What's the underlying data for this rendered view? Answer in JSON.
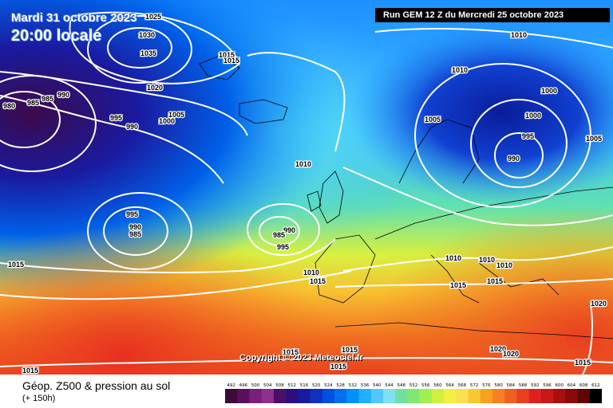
{
  "header": {
    "date_line": "Mardi 31 octobre 2023",
    "time_line": "20:00 locale",
    "run_info": "Run GEM 12 Z du Mercredi 25 octobre 2023"
  },
  "map": {
    "copyright": "Copyright © 2023 Meteociel.fr",
    "isobar_labels": [
      "1025",
      "1030",
      "1035",
      "1020",
      "1015",
      "1015",
      "980",
      "985",
      "985",
      "990",
      "995",
      "990",
      "1000",
      "1005",
      "1010",
      "995",
      "990",
      "985",
      "990",
      "995",
      "985",
      "1010",
      "1015",
      "1010",
      "1015",
      "1005",
      "1010",
      "1000",
      "1000",
      "995",
      "990",
      "1005",
      "1010",
      "1010",
      "1010",
      "1015",
      "1015",
      "1015",
      "1020",
      "1020",
      "1020",
      "1015",
      "1015",
      "1015",
      "1015"
    ]
  },
  "footer": {
    "variable_title": "Géop. Z500 & pression au sol",
    "forecast_hour": "(+ 150h)"
  },
  "legend": {
    "values": [
      "492",
      "496",
      "500",
      "504",
      "508",
      "512",
      "516",
      "520",
      "524",
      "528",
      "532",
      "536",
      "540",
      "544",
      "548",
      "552",
      "556",
      "560",
      "564",
      "568",
      "572",
      "576",
      "580",
      "584",
      "588",
      "592",
      "596",
      "600",
      "604",
      "608",
      "612"
    ],
    "colors": [
      "#3b0a3a",
      "#5a0f5a",
      "#7a1f7a",
      "#8f2f8f",
      "#4a0f66",
      "#2a0f80",
      "#1a1aa0",
      "#1030c0",
      "#0050e0",
      "#0070f0",
      "#0090ff",
      "#20b0ff",
      "#50c8ff",
      "#80e0f0",
      "#70e0a0",
      "#80e870",
      "#a0f050",
      "#d0f040",
      "#f0f040",
      "#f8e050",
      "#f8c830",
      "#f8a020",
      "#f88020",
      "#f06020",
      "#e84020",
      "#e02020",
      "#c81818",
      "#a81010",
      "#880a0a",
      "#600505",
      "#000000"
    ]
  }
}
